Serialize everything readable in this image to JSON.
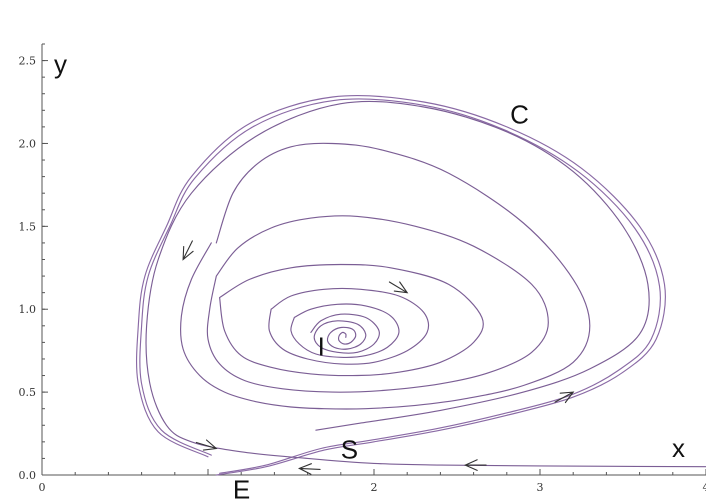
{
  "chart_data": {
    "type": "line",
    "title": "",
    "xlabel": "x",
    "ylabel": "y",
    "xlim": [
      0,
      4
    ],
    "ylim": [
      0,
      2.6
    ],
    "grid": false,
    "xticks": [
      0,
      1,
      2,
      3,
      4
    ],
    "xtick_labels": [
      "0",
      "",
      "2",
      "3",
      "4"
    ],
    "yticks": [
      0.0,
      0.5,
      1.0,
      1.5,
      2.0,
      2.5
    ],
    "ytick_labels": [
      "0.0",
      "0.5",
      "1.0",
      "1.5",
      "2.0",
      "2.5"
    ],
    "line_color": "#7b5e95",
    "limit_cycle_color": "#8a6aa5",
    "series": [
      {
        "id": "limit-cycle-outer",
        "x": [
          1.0,
          0.7,
          0.58,
          0.58,
          0.62,
          0.75,
          0.9,
          1.25,
          1.75,
          2.3,
          2.8,
          3.25,
          3.6,
          3.75,
          3.7,
          3.5,
          3.2,
          2.8,
          2.4,
          2.0,
          1.7,
          1.35,
          1.05
        ],
        "y": [
          0.11,
          0.26,
          0.55,
          0.9,
          1.2,
          1.5,
          1.8,
          2.12,
          2.28,
          2.25,
          2.1,
          1.85,
          1.5,
          1.15,
          0.82,
          0.62,
          0.47,
          0.36,
          0.27,
          0.2,
          0.15,
          0.05,
          0.0
        ]
      },
      {
        "id": "limit-cycle-inner",
        "x": [
          1.02,
          0.72,
          0.6,
          0.6,
          0.64,
          0.77,
          0.92,
          1.27,
          1.76,
          2.3,
          2.79,
          3.23,
          3.57,
          3.72,
          3.67,
          3.47,
          3.18,
          2.78,
          2.38,
          1.98,
          1.68,
          1.35,
          1.07
        ],
        "y": [
          0.12,
          0.27,
          0.55,
          0.9,
          1.2,
          1.5,
          1.79,
          2.1,
          2.26,
          2.23,
          2.08,
          1.83,
          1.49,
          1.14,
          0.82,
          0.63,
          0.48,
          0.37,
          0.28,
          0.21,
          0.16,
          0.06,
          0.01
        ]
      },
      {
        "id": "trajectory-from-right",
        "x": [
          4.0,
          3.0,
          2.4,
          2.0,
          1.6,
          1.2,
          0.9,
          0.75,
          0.65,
          0.63,
          0.7,
          0.9,
          1.3,
          1.8,
          2.3,
          2.8,
          3.2,
          3.5,
          3.65,
          3.6,
          3.3,
          2.9,
          2.4,
          1.9,
          1.65
        ],
        "y": [
          0.05,
          0.055,
          0.06,
          0.07,
          0.1,
          0.14,
          0.2,
          0.3,
          0.55,
          0.9,
          1.3,
          1.7,
          2.05,
          2.24,
          2.22,
          2.07,
          1.83,
          1.5,
          1.15,
          0.85,
          0.64,
          0.5,
          0.39,
          0.31,
          0.27
        ]
      },
      {
        "id": "orbit-5",
        "x": [
          1.05,
          1.15,
          1.3,
          1.5,
          1.75,
          2.05,
          2.45,
          2.9,
          3.2,
          3.3,
          3.2,
          2.9,
          2.55,
          2.25,
          1.95,
          1.7,
          1.5,
          1.3,
          1.1,
          0.95,
          0.85,
          0.84,
          0.9,
          1.02
        ],
        "y": [
          1.4,
          1.7,
          1.88,
          1.98,
          2.0,
          1.96,
          1.82,
          1.52,
          1.18,
          0.9,
          0.68,
          0.54,
          0.46,
          0.42,
          0.4,
          0.4,
          0.41,
          0.44,
          0.5,
          0.6,
          0.76,
          0.96,
          1.18,
          1.4
        ]
      },
      {
        "id": "orbit-4",
        "x": [
          1.05,
          1.18,
          1.38,
          1.62,
          1.9,
          2.25,
          2.6,
          2.95,
          3.05,
          2.95,
          2.7,
          2.4,
          2.05,
          1.75,
          1.45,
          1.22,
          1.07,
          1.0,
          1.01,
          1.05
        ],
        "y": [
          1.2,
          1.37,
          1.49,
          1.55,
          1.56,
          1.5,
          1.38,
          1.15,
          0.92,
          0.74,
          0.62,
          0.55,
          0.51,
          0.5,
          0.52,
          0.57,
          0.67,
          0.82,
          1.0,
          1.2
        ]
      },
      {
        "id": "orbit-3",
        "x": [
          1.07,
          1.25,
          1.5,
          1.8,
          2.1,
          2.45,
          2.65,
          2.6,
          2.4,
          2.15,
          1.9,
          1.62,
          1.38,
          1.2,
          1.1,
          1.07
        ],
        "y": [
          1.07,
          1.18,
          1.25,
          1.27,
          1.25,
          1.15,
          0.95,
          0.8,
          0.68,
          0.62,
          0.6,
          0.61,
          0.65,
          0.72,
          0.87,
          1.07
        ]
      },
      {
        "id": "orbit-2",
        "x": [
          1.38,
          1.5,
          1.7,
          1.92,
          2.15,
          2.3,
          2.32,
          2.2,
          2.0,
          1.8,
          1.6,
          1.45,
          1.37,
          1.38
        ],
        "y": [
          1.0,
          1.08,
          1.12,
          1.12,
          1.08,
          0.98,
          0.86,
          0.75,
          0.68,
          0.67,
          0.7,
          0.76,
          0.87,
          1.0
        ]
      },
      {
        "id": "orbit-1",
        "x": [
          1.52,
          1.62,
          1.78,
          1.95,
          2.1,
          2.15,
          2.08,
          1.95,
          1.8,
          1.65,
          1.55,
          1.5,
          1.52
        ],
        "y": [
          0.95,
          1.0,
          1.03,
          1.02,
          0.96,
          0.86,
          0.77,
          0.72,
          0.71,
          0.73,
          0.79,
          0.87,
          0.95
        ]
      },
      {
        "id": "spiral-inner",
        "x": [
          1.62,
          1.68,
          1.8,
          1.95,
          2.03,
          2.0,
          1.9,
          1.78,
          1.68,
          1.64,
          1.68,
          1.78,
          1.9,
          1.95,
          1.92,
          1.84,
          1.76,
          1.72,
          1.74,
          1.8,
          1.87,
          1.89,
          1.86,
          1.82,
          1.79,
          1.79,
          1.81,
          1.83,
          1.83
        ],
        "y": [
          0.86,
          0.93,
          0.97,
          0.95,
          0.87,
          0.79,
          0.74,
          0.74,
          0.77,
          0.83,
          0.9,
          0.93,
          0.91,
          0.85,
          0.79,
          0.76,
          0.77,
          0.81,
          0.86,
          0.89,
          0.88,
          0.84,
          0.8,
          0.79,
          0.81,
          0.84,
          0.86,
          0.85,
          0.83
        ]
      }
    ],
    "direction_arrows": [
      {
        "x": 0.85,
        "y": 1.3,
        "dx": -0.5,
        "dy": -1.0
      },
      {
        "x": 2.2,
        "y": 1.1,
        "dx": 1.0,
        "dy": -0.6
      },
      {
        "x": 3.2,
        "y": 0.5,
        "dx": 1.0,
        "dy": 0.55
      },
      {
        "x": 1.05,
        "y": 0.16,
        "dx": 1.0,
        "dy": -0.3
      },
      {
        "x": 2.55,
        "y": 0.06,
        "dx": -1.0,
        "dy": 0.0
      },
      {
        "x": 1.55,
        "y": 0.04,
        "dx": -1.0,
        "dy": 0.05
      }
    ],
    "annotations": [
      {
        "id": "C",
        "text": "C",
        "x": 2.82,
        "y": 2.18
      },
      {
        "id": "I",
        "text": "I",
        "x": 1.66,
        "y": 0.78
      },
      {
        "id": "S",
        "text": "S",
        "x": 1.8,
        "y": 0.16
      },
      {
        "id": "E",
        "text": "E",
        "x": 1.15,
        "y": -0.08
      }
    ]
  }
}
